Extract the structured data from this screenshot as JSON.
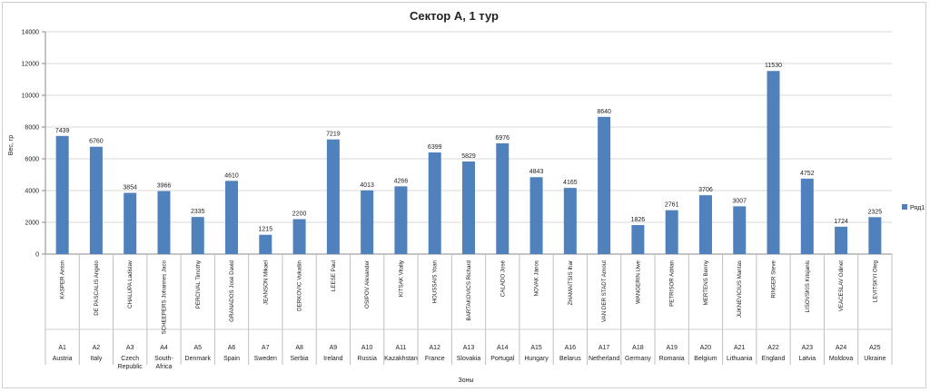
{
  "chart_data": {
    "type": "bar",
    "title": "Сектор А, 1 тур",
    "ylabel": "Вес, гр",
    "xlabel": "Зоны",
    "ylim": [
      0,
      14000
    ],
    "yticks": [
      0,
      2000,
      4000,
      6000,
      8000,
      10000,
      12000,
      14000
    ],
    "grid": true,
    "legend": "right",
    "bar_color": "#4f81bd",
    "categories": [
      {
        "name": "KASPER Anton",
        "zone": "A1",
        "country": "Austria"
      },
      {
        "name": "DE PASCALIS Angelo",
        "zone": "A2",
        "country": "Italy"
      },
      {
        "name": "CHALUPA Ladislav",
        "zone": "A3",
        "country": "Czech Republic"
      },
      {
        "name": "SCHEEPERS Johannes Jaco",
        "zone": "A4",
        "country": "South-Africa"
      },
      {
        "name": "PERCIVAL Timothy",
        "zone": "A5",
        "country": "Denmark"
      },
      {
        "name": "GRANADOS José David",
        "zone": "A6",
        "country": "Spain"
      },
      {
        "name": "JEANSON Mikael",
        "zone": "A7",
        "country": "Sweden"
      },
      {
        "name": "DERKOVIC Vukašin",
        "zone": "A8",
        "country": "Serbia"
      },
      {
        "name": "LEESE Paul",
        "zone": "A9",
        "country": "Ireland"
      },
      {
        "name": "OSIPOV Alexander",
        "zone": "A10",
        "country": "Russia"
      },
      {
        "name": "KITSAK Vitaliy",
        "zone": "A11",
        "country": "Kazakhstan"
      },
      {
        "name": "HOUSSAIS Yoan",
        "zone": "A12",
        "country": "France"
      },
      {
        "name": "BARTAKOVICS Richard",
        "zone": "A13",
        "country": "Slovakia"
      },
      {
        "name": "CALADO José",
        "zone": "A14",
        "country": "Portugal"
      },
      {
        "name": "NOVAK János",
        "zone": "A15",
        "country": "Hungary"
      },
      {
        "name": "ZHAMAITSIS Ihar",
        "zone": "A16",
        "country": "Belarus"
      },
      {
        "name": "VAN DER STADT Arnout",
        "zone": "A17",
        "country": "Netherland"
      },
      {
        "name": "WANGERIN Uwe",
        "zone": "A18",
        "country": "Germany"
      },
      {
        "name": "PETRISOR Adrian",
        "zone": "A19",
        "country": "Romania"
      },
      {
        "name": "MERTENS Benny",
        "zone": "A20",
        "country": "Belgium"
      },
      {
        "name": "JUKNEVICIUS Mantas",
        "zone": "A21",
        "country": "Lithuania"
      },
      {
        "name": "RINGER Steve",
        "zone": "A22",
        "country": "England"
      },
      {
        "name": "LISOVSKIS Krisjanis",
        "zone": "A23",
        "country": "Latvia"
      },
      {
        "name": "VEACESLAV Odinet",
        "zone": "A24",
        "country": "Moldova"
      },
      {
        "name": "LEVITSKYI Oleg",
        "zone": "A25",
        "country": "Ukraine"
      }
    ],
    "series": [
      {
        "name": "Ряд1",
        "values": [
          7439,
          6760,
          3854,
          3966,
          2335,
          4610,
          1215,
          2200,
          7219,
          4013,
          4266,
          6399,
          5829,
          6976,
          4843,
          4165,
          8640,
          1826,
          2761,
          3706,
          3007,
          11530,
          4752,
          1724,
          2325
        ]
      }
    ]
  }
}
